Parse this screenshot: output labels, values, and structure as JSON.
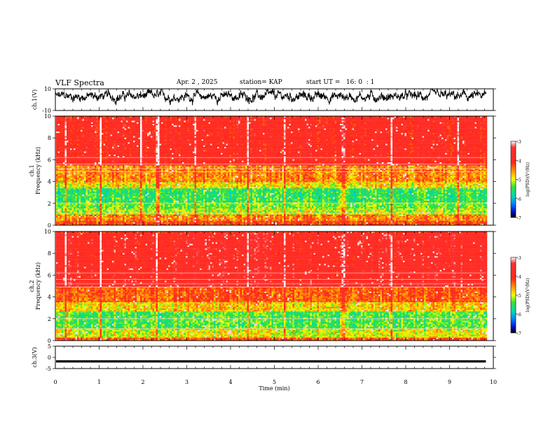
{
  "header": {
    "title": "VLF Spectra",
    "date": "Apr. 2 , 2025",
    "station": "station= KAP",
    "start_time": "start UT =   16: 0  : 1"
  },
  "chart_data": {
    "type": "heatmap",
    "title": "VLF Spectra",
    "xlabel": "Time (min)",
    "xlim": [
      0,
      10
    ],
    "x_ticks": [
      0,
      1,
      2,
      3,
      4,
      5,
      6,
      7,
      8,
      9,
      10
    ],
    "data_end_min": 9.83,
    "panels": [
      {
        "name": "ch1-waveform",
        "kind": "line",
        "ylabel": "ch.1(V)",
        "ylim": [
          -10,
          10
        ],
        "y_ticks": [
          {
            "v": 10,
            "label": "10"
          },
          {
            "v": -10,
            "label": "-10"
          }
        ],
        "baseline": 3,
        "amplitude": 5
      },
      {
        "name": "ch1-spectrogram",
        "kind": "heatmap",
        "ylabel": "ch.1\nFrequency (kHz)",
        "ylim": [
          0,
          10
        ],
        "y_ticks": [
          0,
          2,
          4,
          6,
          8,
          10
        ],
        "colorbar": {
          "label": "log(PSD)(V²/Hz)",
          "range": [
            -7,
            -3
          ],
          "ticks": [
            -3,
            -4,
            -5,
            -6,
            -7
          ]
        },
        "bands": [
          {
            "from": 0,
            "to": 0.5,
            "level": -4.2
          },
          {
            "from": 0.5,
            "to": 1.0,
            "level": -4.5
          },
          {
            "from": 1.0,
            "to": 1.6,
            "level": -5.1
          },
          {
            "from": 1.6,
            "to": 2.2,
            "level": -5.3
          },
          {
            "from": 2.2,
            "to": 3.4,
            "level": -5.5
          },
          {
            "from": 3.4,
            "to": 4.0,
            "level": -4.9
          },
          {
            "from": 4.0,
            "to": 5.5,
            "level": -4.5
          },
          {
            "from": 5.5,
            "to": 10,
            "level": -3.8
          }
        ],
        "bright_events_min": [
          0.22,
          1.02,
          1.93,
          2.3,
          2.34,
          3.18,
          4.39,
          5.22,
          6.56,
          7.67,
          9.18
        ]
      },
      {
        "name": "ch2-spectrogram",
        "kind": "heatmap",
        "ylabel": "ch.2\nFrequency (kHz)",
        "ylim": [
          0,
          10
        ],
        "y_ticks": [
          0,
          2,
          4,
          6,
          8,
          10
        ],
        "colorbar": {
          "label": "log(PSD)(V²/Hz)",
          "range": [
            -7,
            -3
          ],
          "ticks": [
            -3,
            -4,
            -5,
            -6,
            -7
          ]
        },
        "bands": [
          {
            "from": 0,
            "to": 0.3,
            "level": -4.3
          },
          {
            "from": 0.3,
            "to": 1.2,
            "level": -5.0
          },
          {
            "from": 1.2,
            "to": 2.8,
            "level": -5.4
          },
          {
            "from": 2.8,
            "to": 3.6,
            "level": -4.8
          },
          {
            "from": 3.6,
            "to": 5.0,
            "level": -4.3
          },
          {
            "from": 5.0,
            "to": 10,
            "level": -3.7
          }
        ],
        "bright_events_min": [
          0.22,
          1.02,
          2.3,
          4.39,
          5.22,
          6.56,
          7.67
        ]
      },
      {
        "name": "ch3-waveform",
        "kind": "band",
        "ylabel": "ch.3(V)",
        "ylim": [
          -5,
          5
        ],
        "y_ticks": [
          {
            "v": 5,
            "label": "5"
          },
          {
            "v": 0,
            "label": "0"
          },
          {
            "v": -5,
            "label": "-5"
          }
        ],
        "band_range": [
          -1.3,
          -2.3
        ]
      }
    ]
  }
}
